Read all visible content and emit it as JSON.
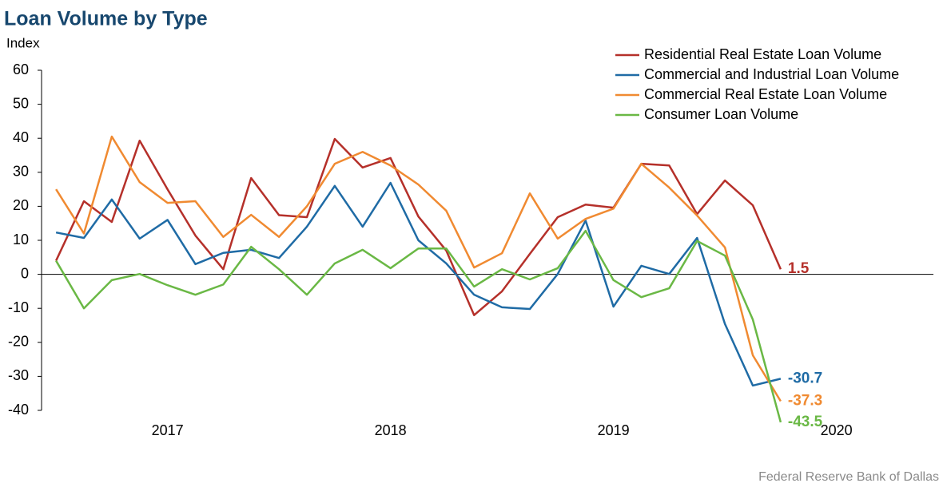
{
  "chart_data": {
    "type": "line",
    "title": "Loan Volume by Type",
    "y_axis_label": "Index",
    "source": "Federal Reserve Bank of Dallas",
    "x": [
      2017,
      2017.125,
      2017.25,
      2017.375,
      2017.5,
      2017.625,
      2017.75,
      2017.875,
      2018,
      2018.125,
      2018.25,
      2018.375,
      2018.5,
      2018.625,
      2018.75,
      2018.875,
      2019,
      2019.125,
      2019.25,
      2019.375,
      2019.5,
      2019.625,
      2019.75,
      2019.875,
      2020,
      2020.125,
      2020.25
    ],
    "xlim": [
      2016.935,
      2020.935
    ],
    "xticks": [
      {
        "value": 2017.5,
        "label": "2017"
      },
      {
        "value": 2018.5,
        "label": "2018"
      },
      {
        "value": 2019.5,
        "label": "2019"
      },
      {
        "value": 2020.5,
        "label": "2020"
      }
    ],
    "ylim": [
      -40,
      60
    ],
    "yticks": [
      -40,
      -30,
      -20,
      -10,
      0,
      10,
      20,
      30,
      40,
      50,
      60
    ],
    "legend": "upper right",
    "end_labels": true,
    "series": [
      {
        "name": "Residential Real Estate Loan Volume",
        "color": "#b5302a",
        "values": [
          4,
          21.5,
          15.4,
          39.3,
          25,
          11.4,
          1.5,
          28.3,
          17.4,
          16.8,
          39.8,
          31.4,
          34.2,
          17,
          7,
          -12,
          -5,
          6,
          16.8,
          20.5,
          19.6,
          32.5,
          32,
          17.7,
          27.6,
          20.3,
          1.5
        ]
      },
      {
        "name": "Commercial and Industrial Loan Volume",
        "color": "#1f6ba5",
        "values": [
          12.3,
          10.7,
          22,
          10.5,
          16,
          3,
          6.3,
          7.2,
          4.8,
          14,
          26,
          14,
          26.9,
          10,
          3.2,
          -6,
          -9.7,
          -10.2,
          0.1,
          15.8,
          -9.5,
          2.5,
          0.1,
          10.7,
          -14.6,
          -32.7,
          -30.7
        ]
      },
      {
        "name": "Commercial Real Estate Loan Volume",
        "color": "#f08a31",
        "values": [
          25,
          12,
          40.5,
          27.1,
          21,
          21.5,
          11,
          17.5,
          11,
          20,
          32.5,
          36,
          32,
          26.4,
          18.7,
          2,
          6.2,
          23.8,
          10.5,
          16.3,
          19.3,
          32.5,
          25.5,
          17.3,
          7.9,
          -23.8,
          -37.3
        ]
      },
      {
        "name": "Consumer Loan Volume",
        "color": "#6ab845",
        "values": [
          4,
          -10,
          -1.7,
          0.1,
          -3.2,
          -6,
          -3,
          8.1,
          1.5,
          -6,
          3.2,
          7.2,
          1.8,
          7.6,
          7.6,
          -3.6,
          1.5,
          -1.5,
          1.8,
          12.8,
          -1.7,
          -6.7,
          -4.1,
          9.8,
          5.5,
          -13.3,
          -43.5
        ]
      }
    ]
  }
}
